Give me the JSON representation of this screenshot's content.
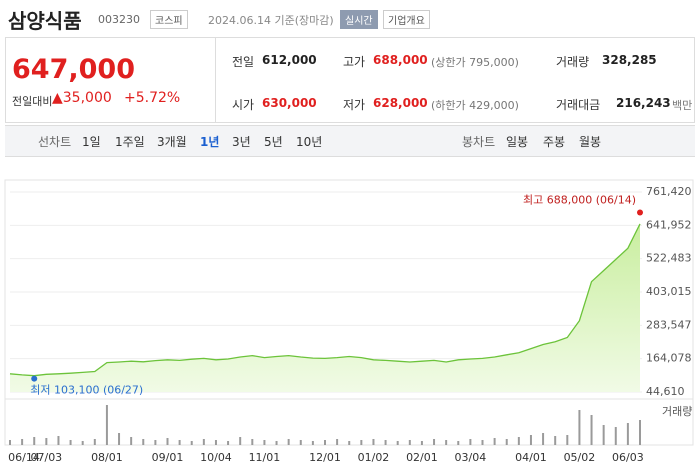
{
  "header": {
    "name": "삼양식품",
    "code": "003230",
    "market": "코스피",
    "date": "2024.06.14 기준(장마감)",
    "realtime": "실시간",
    "menu": "기업개요"
  },
  "quote": {
    "price": "647,000",
    "change_label": "전일대비",
    "change": "▲35,000",
    "rate": "+5.72%",
    "stats": [
      [
        "전일",
        "612,000",
        ""
      ],
      [
        "고가",
        "688,000",
        "(상한가 795,000)"
      ],
      [
        "거래량",
        "328,285",
        ""
      ],
      [
        "시가",
        "630,000",
        ""
      ],
      [
        "저가",
        "628,000",
        "(하한가 429,000)"
      ],
      [
        "거래대금",
        "216,243",
        "백만"
      ]
    ]
  },
  "tabs": {
    "line_label": "선차트",
    "line": [
      "1일",
      "1주일",
      "3개월",
      "1년",
      "3년",
      "5년",
      "10년"
    ],
    "selected": "1년",
    "candle_label": "봉차트",
    "candle": [
      "일봉",
      "주봉",
      "월봉"
    ]
  },
  "chart_data": [
    {
      "type": "line",
      "color": "#6cc33a",
      "categories": [
        "06/14",
        null,
        null,
        "07/03",
        null,
        null,
        null,
        null,
        "08/01",
        null,
        null,
        null,
        null,
        "09/01",
        null,
        null,
        null,
        "10/04",
        null,
        null,
        null,
        "11/01",
        null,
        null,
        null,
        null,
        "12/01",
        null,
        null,
        null,
        "01/02",
        null,
        null,
        null,
        "02/01",
        null,
        null,
        null,
        "03/04",
        null,
        null,
        null,
        null,
        "04/01",
        null,
        null,
        null,
        "05/02",
        null,
        null,
        null,
        "06/03",
        null
      ],
      "values": [
        110000,
        106000,
        103100,
        108000,
        110000,
        112000,
        115000,
        118000,
        150000,
        152000,
        155000,
        153000,
        157000,
        160000,
        158000,
        162000,
        165000,
        160000,
        163000,
        170000,
        175000,
        168000,
        172000,
        175000,
        170000,
        166000,
        165000,
        168000,
        172000,
        168000,
        160000,
        158000,
        155000,
        152000,
        155000,
        158000,
        152000,
        160000,
        163000,
        165000,
        170000,
        178000,
        185000,
        200000,
        215000,
        225000,
        240000,
        300000,
        440000,
        480000,
        520000,
        560000,
        647000
      ],
      "ylim": [
        44610,
        761420
      ],
      "yticks": [
        {
          "value": 44610,
          "label": "44,610"
        },
        {
          "value": 164078,
          "label": "164,078"
        },
        {
          "value": 283547,
          "label": "283,547"
        },
        {
          "value": 403015,
          "label": "403,015"
        },
        {
          "value": 522483,
          "label": "522,483"
        },
        {
          "value": 641952,
          "label": "641,952"
        },
        {
          "value": 761420,
          "label": "761,420"
        }
      ],
      "high": {
        "label": "최고 688,000 (06/14)",
        "value": 688000
      },
      "low": {
        "label": "최저 103,100 (06/27)",
        "value": 103100
      }
    },
    {
      "type": "bar",
      "name": "거래량",
      "color": "#9a9a9a",
      "values": [
        5,
        6,
        8,
        7,
        9,
        5,
        4,
        6,
        40,
        12,
        8,
        6,
        5,
        7,
        5,
        4,
        6,
        5,
        4,
        8,
        6,
        5,
        4,
        6,
        5,
        4,
        5,
        6,
        4,
        5,
        6,
        5,
        4,
        5,
        4,
        6,
        5,
        4,
        6,
        5,
        7,
        6,
        8,
        10,
        12,
        9,
        10,
        35,
        30,
        20,
        18,
        22,
        25
      ]
    }
  ]
}
